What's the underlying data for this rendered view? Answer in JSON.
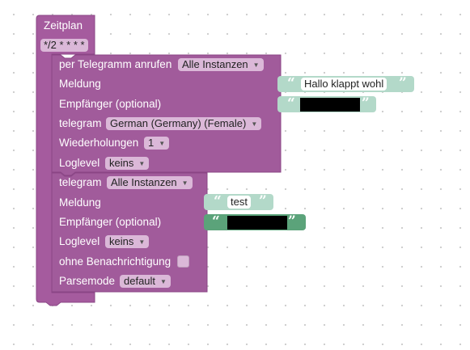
{
  "colors": {
    "outer": "#a55b9e",
    "inner": "#a15b9b",
    "text_block": "#b3d9c9",
    "text_block_selected": "#5ba37a"
  },
  "schedule": {
    "title": "Zeitplan",
    "cron": "*/2 * * * *"
  },
  "block1": {
    "header": "per Telegramm anrufen",
    "instance": "Alle Instanzen",
    "message_label": "Meldung",
    "message_value": "Hallo klappt wohl",
    "recipient_label": "Empfänger (optional)",
    "voice_label": "telegram",
    "voice_value": "German (Germany) (Female)",
    "repeat_label": "Wiederholungen",
    "repeat_value": "1",
    "loglevel_label": "Loglevel",
    "loglevel_value": "keins"
  },
  "block2": {
    "header": "telegram",
    "instance": "Alle Instanzen",
    "message_label": "Meldung",
    "message_value": "test",
    "recipient_label": "Empfänger (optional)",
    "loglevel_label": "Loglevel",
    "loglevel_value": "keins",
    "silent_label": "ohne Benachrichtigung",
    "parsemode_label": "Parsemode",
    "parsemode_value": "default"
  },
  "icons": {
    "dropdown": "triangle-down-icon",
    "quote_open": "open-quote-icon",
    "quote_close": "close-quote-icon"
  }
}
